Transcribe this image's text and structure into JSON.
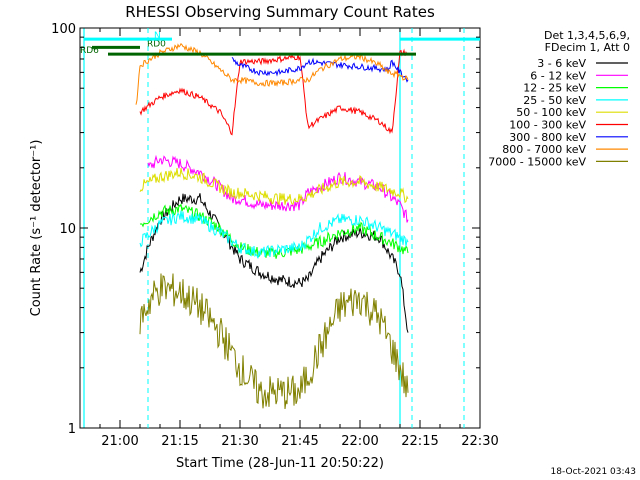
{
  "chart_data": {
    "type": "line",
    "title": "RHESSI Observing Summary Count Rates",
    "xlabel": "Start Time (28-Jun-11 20:50:22)",
    "ylabel": "Count Rate (s⁻¹ detector⁻¹)",
    "ylim": [
      1,
      100
    ],
    "yscale": "log",
    "xlim": [
      "20:50",
      "22:30"
    ],
    "x_ticks": [
      "21:00",
      "21:15",
      "21:30",
      "21:45",
      "22:00",
      "22:15",
      "22:30"
    ],
    "y_ticks": [
      "1",
      "10",
      "100"
    ],
    "legend_header": [
      "Det 1,3,4,5,6,9,",
      "FDecim 1, Att 0"
    ],
    "legend_position": "right",
    "date_stamp": "18-Oct-2021 03:43",
    "series": [
      {
        "name": "3 - 6 keV",
        "color": "#000000",
        "x": [
          "21:05",
          "21:07",
          "21:10",
          "21:15",
          "21:20",
          "21:25",
          "21:30",
          "21:35",
          "21:40",
          "21:45",
          "21:47",
          "21:50",
          "21:55",
          "22:00",
          "22:05",
          "22:10",
          "22:12"
        ],
        "y": [
          6,
          8,
          11,
          14,
          14,
          10,
          7,
          6,
          5.5,
          5.3,
          5.5,
          7,
          9,
          9.5,
          9,
          6,
          3
        ]
      },
      {
        "name": "6 - 12 keV",
        "color": "#ff00ff",
        "x": [
          "21:07",
          "21:10",
          "21:15",
          "21:20",
          "21:25",
          "21:28",
          "21:30",
          "21:35",
          "21:40",
          "21:45",
          "21:47",
          "21:50",
          "21:55",
          "22:00",
          "22:05",
          "22:10",
          "22:12"
        ],
        "y": [
          20,
          22,
          21,
          19,
          16,
          14,
          14,
          13,
          13,
          13,
          15,
          16,
          18,
          17,
          16,
          13,
          11
        ]
      },
      {
        "name": "12 - 25 keV",
        "color": "#00ff00",
        "x": [
          "21:05",
          "21:10",
          "21:15",
          "21:20",
          "21:25",
          "21:30",
          "21:35",
          "21:40",
          "21:45",
          "21:50",
          "21:55",
          "22:00",
          "22:05",
          "22:10",
          "22:12"
        ],
        "y": [
          10.5,
          12,
          12.5,
          11.5,
          10,
          8,
          7.5,
          7.5,
          7.8,
          8.5,
          9.5,
          10,
          9,
          8,
          7.5
        ]
      },
      {
        "name": "25 - 50 keV",
        "color": "#00ffff",
        "x": [
          "21:05",
          "21:10",
          "21:15",
          "21:20",
          "21:25",
          "21:30",
          "21:35",
          "21:40",
          "21:45",
          "21:50",
          "21:55",
          "22:00",
          "22:05",
          "22:10",
          "22:12"
        ],
        "y": [
          8.5,
          10.5,
          11.5,
          11,
          9.5,
          8,
          7.5,
          7.8,
          8,
          10,
          11,
          11,
          10,
          9,
          8.5
        ]
      },
      {
        "name": "50 - 100 keV",
        "color": "#dddd00",
        "x": [
          "21:05",
          "21:10",
          "21:15",
          "21:20",
          "21:25",
          "21:28",
          "21:30",
          "21:35",
          "21:40",
          "21:45",
          "21:47",
          "21:50",
          "21:55",
          "22:00",
          "22:05",
          "22:10",
          "22:12"
        ],
        "y": [
          16,
          18,
          19,
          18,
          16,
          15,
          15,
          14.5,
          14,
          14,
          14.5,
          15.5,
          17,
          17,
          16,
          15,
          14
        ]
      },
      {
        "name": "100 - 300 keV",
        "color": "#ff0000",
        "x": [
          "21:05",
          "21:10",
          "21:15",
          "21:20",
          "21:25",
          "21:28",
          "21:30",
          "21:35",
          "21:40",
          "21:45",
          "21:47",
          "21:50",
          "21:55",
          "22:00",
          "22:05",
          "22:08",
          "22:10",
          "22:12"
        ],
        "y": [
          38,
          45,
          49,
          45,
          38,
          30,
          68,
          68,
          70,
          72,
          32,
          35,
          40,
          38,
          34,
          30,
          75,
          75
        ]
      },
      {
        "name": "300 - 800 keV",
        "color": "#0000ff",
        "x": [
          "21:28",
          "21:30",
          "21:35",
          "21:40",
          "21:45",
          "21:47",
          "22:07",
          "22:08",
          "22:10",
          "22:12"
        ],
        "y": [
          70,
          65,
          60,
          60,
          63,
          68,
          62,
          68,
          60,
          55
        ]
      },
      {
        "name": "800 - 7000 keV",
        "color": "#ff8800",
        "x": [
          "21:04",
          "21:05",
          "21:10",
          "21:15",
          "21:20",
          "21:25",
          "21:28",
          "21:30",
          "21:35",
          "21:40",
          "21:45",
          "21:47",
          "21:50",
          "21:55",
          "22:00",
          "22:05",
          "22:07",
          "22:10",
          "22:12"
        ],
        "y": [
          40,
          65,
          75,
          82,
          75,
          62,
          55,
          55,
          53,
          53,
          55,
          55,
          62,
          70,
          72,
          65,
          60,
          58,
          55
        ]
      },
      {
        "name": "7000 - 15000 keV",
        "color": "#808000",
        "x": [
          "21:05",
          "21:08",
          "21:10",
          "21:15",
          "21:20",
          "21:25",
          "21:30",
          "21:35",
          "21:40",
          "21:45",
          "21:50",
          "21:55",
          "22:00",
          "22:05",
          "22:08",
          "22:10",
          "22:12"
        ],
        "y": [
          3.5,
          4.5,
          5,
          4.8,
          4,
          3,
          2,
          1.5,
          1.5,
          1.5,
          2.5,
          4,
          4.5,
          3.5,
          2.5,
          2,
          1.5
        ]
      }
    ],
    "annotations": [
      {
        "label": "RD6",
        "color": "#006400",
        "x_start": "20:57",
        "x_end": "22:14",
        "y": 74
      },
      {
        "label": "RD0",
        "color": "#006400",
        "x_start": "20:53",
        "x_end": "21:05",
        "y": 80
      },
      {
        "label": "N",
        "color": "#00ffff",
        "x_start": "20:51",
        "x_end": "21:13",
        "y": 88
      },
      {
        "label": "",
        "color": "#00ffff",
        "x_start": "22:10",
        "x_end": "22:30",
        "y": 88
      }
    ],
    "vertical_markers": {
      "color": "#00ffff",
      "x_dashed": [
        "21:07",
        "22:13",
        "22:26"
      ],
      "x_solid": [
        "20:51",
        "22:10"
      ]
    }
  }
}
